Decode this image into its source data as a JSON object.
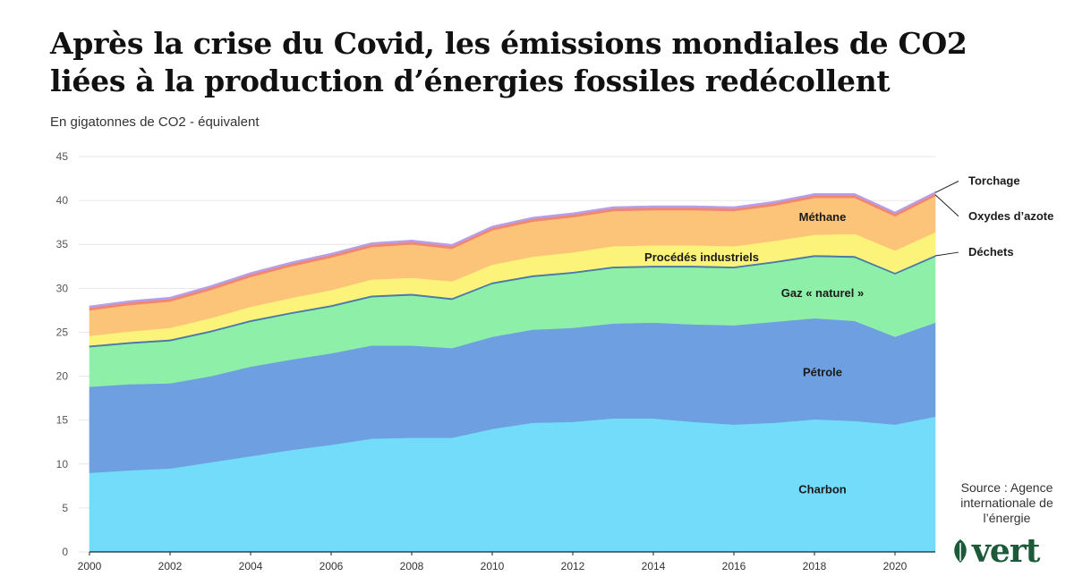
{
  "header": {
    "title_line1": "Après la crise du Covid, les émissions mondiales de CO2",
    "title_line2": "liées à la production d’énergies fossiles redécollent",
    "subtitle": "En gigatonnes de CO2 - équivalent"
  },
  "footer": {
    "source": "Source : Agence internationale de l’énergie",
    "brand": "vert",
    "brand_icon": "leaf-icon"
  },
  "colors": {
    "Charbon": "#72dcfa",
    "Pétrole": "#6e9fe0",
    "Gaz « naturel »": "#8ef0a8",
    "Déchets": "#4a7aa8",
    "Procédés industriels": "#fcf47a",
    "Méthane": "#fcc478",
    "Oxydes d’azote": "#f2876f",
    "Torchage": "#b79ee8"
  },
  "chart_data": {
    "type": "area",
    "stacked": true,
    "x": [
      2000,
      2001,
      2002,
      2003,
      2004,
      2005,
      2006,
      2007,
      2008,
      2009,
      2010,
      2011,
      2012,
      2013,
      2014,
      2015,
      2016,
      2017,
      2018,
      2019,
      2020,
      2021
    ],
    "x_ticks": [
      2000,
      2002,
      2004,
      2006,
      2008,
      2010,
      2012,
      2014,
      2016,
      2018,
      2020
    ],
    "y_ticks": [
      0,
      5,
      10,
      15,
      20,
      25,
      30,
      35,
      40,
      45
    ],
    "ylim": [
      0,
      45
    ],
    "grid": true,
    "series": [
      {
        "name": "Charbon",
        "values": [
          9.0,
          9.3,
          9.5,
          10.2,
          10.9,
          11.6,
          12.2,
          12.9,
          13.0,
          13.0,
          14.0,
          14.7,
          14.8,
          15.2,
          15.2,
          14.8,
          14.5,
          14.7,
          15.1,
          14.9,
          14.5,
          15.4
        ]
      },
      {
        "name": "Pétrole",
        "values": [
          9.8,
          9.8,
          9.7,
          9.8,
          10.2,
          10.3,
          10.4,
          10.6,
          10.5,
          10.2,
          10.5,
          10.6,
          10.7,
          10.8,
          10.9,
          11.1,
          11.3,
          11.5,
          11.5,
          11.4,
          10.0,
          10.7
        ]
      },
      {
        "name": "Gaz « naturel »",
        "values": [
          4.5,
          4.6,
          4.8,
          5.0,
          5.1,
          5.2,
          5.3,
          5.5,
          5.7,
          5.5,
          6.0,
          6.0,
          6.2,
          6.3,
          6.3,
          6.5,
          6.5,
          6.7,
          7.0,
          7.2,
          7.1,
          7.5
        ]
      },
      {
        "name": "Déchets",
        "values": [
          0.2,
          0.2,
          0.2,
          0.2,
          0.2,
          0.2,
          0.2,
          0.2,
          0.2,
          0.2,
          0.2,
          0.2,
          0.2,
          0.2,
          0.2,
          0.2,
          0.2,
          0.2,
          0.2,
          0.2,
          0.2,
          0.2
        ]
      },
      {
        "name": "Procédés industriels",
        "values": [
          1.1,
          1.2,
          1.3,
          1.4,
          1.5,
          1.6,
          1.7,
          1.8,
          1.8,
          1.9,
          2.0,
          2.1,
          2.2,
          2.3,
          2.3,
          2.3,
          2.3,
          2.3,
          2.3,
          2.5,
          2.5,
          2.6
        ]
      },
      {
        "name": "Méthane",
        "values": [
          2.9,
          3.0,
          3.0,
          3.2,
          3.4,
          3.6,
          3.7,
          3.7,
          3.8,
          3.7,
          3.9,
          4.0,
          4.0,
          4.0,
          4.0,
          4.0,
          4.0,
          4.0,
          4.2,
          4.1,
          3.9,
          4.1
        ]
      },
      {
        "name": "Oxydes d’azote",
        "values": [
          0.3,
          0.3,
          0.3,
          0.3,
          0.3,
          0.3,
          0.3,
          0.3,
          0.3,
          0.3,
          0.3,
          0.3,
          0.3,
          0.3,
          0.3,
          0.3,
          0.3,
          0.3,
          0.3,
          0.3,
          0.3,
          0.3
        ]
      },
      {
        "name": "Torchage",
        "values": [
          0.2,
          0.2,
          0.2,
          0.2,
          0.2,
          0.2,
          0.2,
          0.2,
          0.2,
          0.2,
          0.2,
          0.2,
          0.2,
          0.2,
          0.2,
          0.2,
          0.2,
          0.2,
          0.2,
          0.2,
          0.2,
          0.2
        ]
      }
    ],
    "labels": [
      {
        "series": "Charbon",
        "text": "Charbon",
        "placement": "inside",
        "x": 2018.2,
        "y": 7.2
      },
      {
        "series": "Pétrole",
        "text": "Pétrole",
        "placement": "inside",
        "x": 2018.2,
        "y": 20.5
      },
      {
        "series": "Gaz « naturel »",
        "text": "Gaz « naturel »",
        "placement": "inside",
        "x": 2018.2,
        "y": 29.5
      },
      {
        "series": "Procédés industriels",
        "text": "Procédés industriels",
        "placement": "inside",
        "x": 2015.2,
        "y": 33.6
      },
      {
        "series": "Méthane",
        "text": "Méthane",
        "placement": "inside",
        "x": 2018.2,
        "y": 38.2
      },
      {
        "series": "Déchets",
        "text": "Déchets",
        "placement": "outside",
        "label_y": 34.1
      },
      {
        "series": "Oxydes d’azote",
        "text": "Oxydes d’azote",
        "placement": "outside",
        "label_y": 38.2
      },
      {
        "series": "Torchage",
        "text": "Torchage",
        "placement": "outside",
        "label_y": 42.2
      }
    ]
  }
}
